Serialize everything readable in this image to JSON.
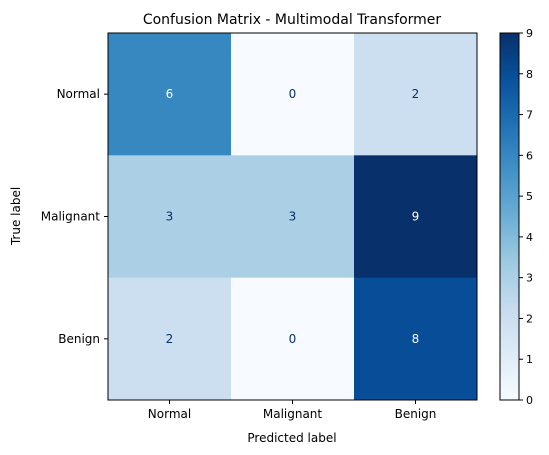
{
  "chart_data": {
    "type": "heatmap",
    "title": "Confusion Matrix - Multimodal Transformer",
    "xlabel": "Predicted label",
    "ylabel": "True label",
    "x_categories": [
      "Normal",
      "Malignant",
      "Benign"
    ],
    "y_categories": [
      "Normal",
      "Malignant",
      "Benign"
    ],
    "values": [
      [
        6,
        0,
        2
      ],
      [
        3,
        3,
        9
      ],
      [
        2,
        0,
        8
      ]
    ],
    "colormap": "Blues",
    "color_range": [
      0,
      9
    ],
    "colorbar_ticks": [
      0,
      1,
      2,
      3,
      4,
      5,
      6,
      7,
      8,
      9
    ],
    "colors": {
      "label_dark": "#08306b",
      "label_light": "#ffffff",
      "axis": "#000000"
    }
  }
}
